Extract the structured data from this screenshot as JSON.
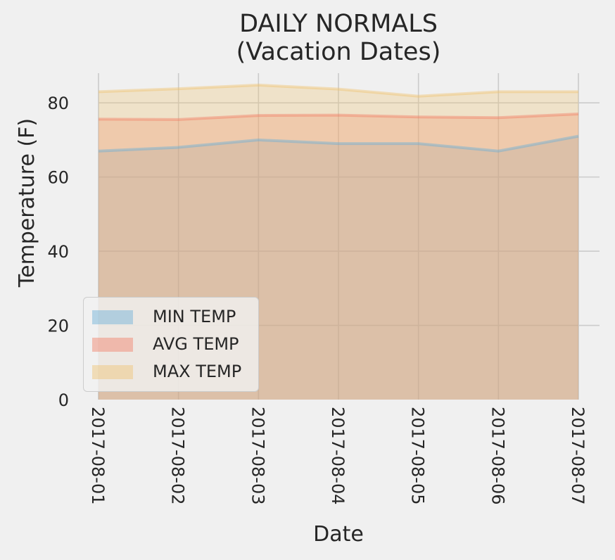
{
  "chart_data": {
    "type": "area",
    "title": [
      "DAILY NORMALS",
      "(Vacation Dates)"
    ],
    "xlabel": "Date",
    "ylabel": "Temperature (F)",
    "categories": [
      "2017-08-01",
      "2017-08-02",
      "2017-08-03",
      "2017-08-04",
      "2017-08-05",
      "2017-08-06",
      "2017-08-07"
    ],
    "ylim": [
      0,
      88
    ],
    "yticks": [
      0,
      20,
      40,
      60,
      80
    ],
    "grid": true,
    "stacked": false,
    "legend_position": "lower-left",
    "series": [
      {
        "name": "MIN TEMP",
        "values": [
          67,
          68,
          70,
          69,
          69,
          67,
          71
        ],
        "color": "#6ab0d6"
      },
      {
        "name": "AVG TEMP",
        "values": [
          75.6,
          75.5,
          76.6,
          76.7,
          76.2,
          76.0,
          77.0
        ],
        "color": "#f27f66"
      },
      {
        "name": "MAX TEMP",
        "values": [
          83,
          83.8,
          84.8,
          83.7,
          81.8,
          83.0,
          83.0
        ],
        "color": "#f0c472"
      }
    ]
  }
}
